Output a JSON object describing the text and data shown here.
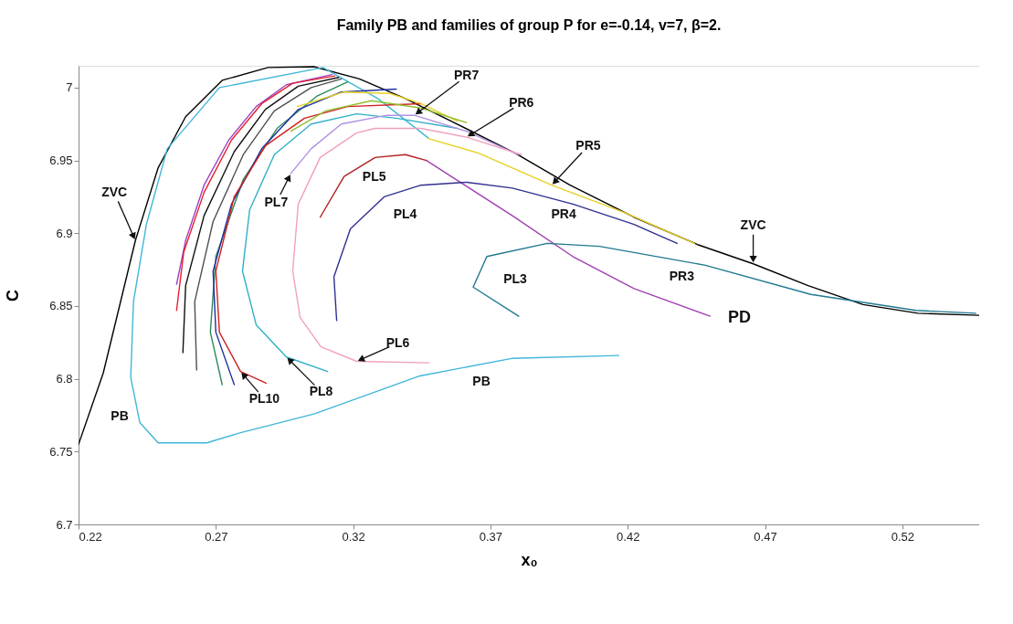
{
  "chart_data": {
    "type": "line",
    "title": "Family PB and families of group P  for e=-0.14, v=7, β=2.",
    "xlabel": "x₀",
    "ylabel": "C",
    "xlim": [
      0.22,
      0.548
    ],
    "xticks": [
      0.22,
      0.27,
      0.32,
      0.37,
      0.42,
      0.47,
      0.52
    ],
    "ylim": [
      6.7,
      7.015
    ],
    "yticks": [
      6.7,
      6.75,
      6.8,
      6.85,
      6.9,
      6.95,
      7
    ],
    "grid": false,
    "legend": false,
    "marker": "none",
    "line_style": "solid",
    "series": [
      {
        "color": "#000000",
        "x": [
          0.22,
          0.229,
          0.2407,
          0.249,
          0.259,
          0.2723,
          0.289,
          0.3057,
          0.3223,
          0.339,
          0.3557,
          0.379,
          0.399,
          0.4223,
          0.4457,
          0.4657,
          0.4857,
          0.5057,
          0.5257,
          0.548
        ],
        "values": [
          6.755,
          6.804,
          6.895,
          6.945,
          6.98,
          7.005,
          7.0138,
          7.0144,
          7.006,
          6.9925,
          6.977,
          6.955,
          6.933,
          6.911,
          6.892,
          6.879,
          6.864,
          6.851,
          6.845,
          6.8436
        ]
      },
      {
        "color": "#41b6d9",
        "x": [
          0.3473,
          0.329,
          0.309,
          0.2713,
          0.2523,
          0.2447,
          0.24,
          0.239,
          0.2423,
          0.249,
          0.2667,
          0.279,
          0.306,
          0.3443,
          0.3777,
          0.4167
        ],
        "values": [
          6.9655,
          6.9925,
          7.0138,
          7.0,
          6.958,
          6.906,
          6.853,
          6.801,
          6.77,
          6.756,
          6.756,
          6.763,
          6.776,
          6.802,
          6.814,
          6.816
        ]
      },
      {
        "color": "#a040c0",
        "x": [
          0.2557,
          0.259,
          0.2657,
          0.2747,
          0.2847,
          0.2957,
          0.3123
        ],
        "values": [
          6.865,
          6.895,
          6.933,
          6.964,
          6.987,
          7.002,
          7.009
        ]
      },
      {
        "color": "#e02030",
        "x": [
          0.2557,
          0.2583,
          0.2657,
          0.2757,
          0.2867,
          0.298,
          0.3133
        ],
        "values": [
          6.847,
          6.887,
          6.928,
          6.964,
          6.989,
          7.003,
          7.008
        ]
      },
      {
        "color": "#111111",
        "x": [
          0.258,
          0.259,
          0.2657,
          0.2767,
          0.288,
          0.3,
          0.3147
        ],
        "values": [
          6.818,
          6.864,
          6.912,
          6.956,
          6.985,
          7.001,
          7.007
        ]
      },
      {
        "color": "#505050",
        "x": [
          0.263,
          0.2623,
          0.269,
          0.28,
          0.2913,
          0.3047,
          0.3157
        ],
        "values": [
          6.806,
          6.853,
          6.908,
          6.954,
          6.984,
          7.0,
          7.006
        ]
      },
      {
        "color": "#2a8a5a",
        "x": [
          0.2723,
          0.268,
          0.27,
          0.28,
          0.2923,
          0.3067,
          0.318
        ],
        "values": [
          6.796,
          6.832,
          6.884,
          6.937,
          6.972,
          6.994,
          7.004
        ]
      },
      {
        "color": "#2030a0",
        "x": [
          0.2767,
          0.27,
          0.269,
          0.2757,
          0.2867,
          0.3,
          0.3157,
          0.3357
        ],
        "values": [
          6.796,
          6.832,
          6.874,
          6.92,
          6.958,
          6.985,
          6.997,
          6.999
        ]
      },
      {
        "color": "#d02020",
        "x": [
          0.2883,
          0.279,
          0.2713,
          0.27,
          0.2767,
          0.288,
          0.3023,
          0.318,
          0.3447
        ],
        "values": [
          6.797,
          6.805,
          6.832,
          6.874,
          6.925,
          6.96,
          6.979,
          6.987,
          6.989
        ]
      },
      {
        "color": "#e8d020",
        "x": [
          0.2997,
          0.3167,
          0.3333,
          0.3447,
          0.358
        ],
        "values": [
          6.987,
          6.997,
          6.996,
          6.989,
          6.977
        ]
      },
      {
        "color": "#90c030",
        "x": [
          0.2973,
          0.31,
          0.3267,
          0.3447,
          0.3613
        ],
        "values": [
          6.97,
          6.984,
          6.991,
          6.986,
          6.976
        ]
      },
      {
        "color": "#30b0c8",
        "x": [
          0.3107,
          0.2957,
          0.2847,
          0.2797,
          0.2823,
          0.2913,
          0.3047,
          0.3213,
          0.3357,
          0.358
        ],
        "values": [
          6.805,
          6.815,
          6.837,
          6.874,
          6.916,
          6.954,
          6.975,
          6.982,
          6.979,
          6.972
        ]
      },
      {
        "color": "#b090e0",
        "x": [
          0.2973,
          0.3047,
          0.3157,
          0.3323,
          0.3423,
          0.3613,
          0.38
        ],
        "values": [
          6.941,
          6.958,
          6.975,
          6.981,
          6.981,
          6.97,
          6.954
        ]
      },
      {
        "color": "#f0a0c0",
        "x": [
          0.3477,
          0.3213,
          0.3083,
          0.3007,
          0.298,
          0.3,
          0.308,
          0.3213,
          0.328,
          0.3447,
          0.3613,
          0.3813
        ],
        "values": [
          6.811,
          6.812,
          6.822,
          6.842,
          6.874,
          6.92,
          6.952,
          6.969,
          6.972,
          6.972,
          6.966,
          6.954
        ]
      },
      {
        "color": "#b02020",
        "x": [
          0.308,
          0.3167,
          0.328,
          0.339,
          0.3467
        ],
        "values": [
          6.911,
          6.939,
          6.952,
          6.954,
          6.95
        ]
      },
      {
        "color": "#a040b0",
        "x": [
          0.3467,
          0.3557,
          0.378,
          0.4,
          0.4223,
          0.45
        ],
        "values": [
          6.95,
          6.939,
          6.912,
          6.884,
          6.862,
          6.843
        ]
      },
      {
        "color": "#303090",
        "x": [
          0.314,
          0.313,
          0.319,
          0.3313,
          0.3447,
          0.3613,
          0.378,
          0.4,
          0.4223,
          0.438
        ],
        "values": [
          6.84,
          6.87,
          6.903,
          6.925,
          6.933,
          6.935,
          6.931,
          6.92,
          6.906,
          6.893
        ]
      },
      {
        "color": "#207890",
        "x": [
          0.3803,
          0.3637,
          0.3687,
          0.3907,
          0.4097,
          0.4483,
          0.4867,
          0.525,
          0.5467
        ],
        "values": [
          6.843,
          6.863,
          6.884,
          6.893,
          6.891,
          6.878,
          6.858,
          6.847,
          6.845
        ]
      },
      {
        "color": "#e8d020",
        "x": [
          0.3473,
          0.3657,
          0.3923,
          0.419,
          0.4443
        ],
        "values": [
          6.965,
          6.955,
          6.933,
          6.914,
          6.893
        ]
      }
    ],
    "annotations": [
      {
        "text": "ZVC",
        "x": 0.2407,
        "y": 6.895
      },
      {
        "text": "ZVC",
        "x": 0.4657,
        "y": 6.879
      },
      {
        "text": "PB",
        "x": 0.2423,
        "y": 6.77
      },
      {
        "text": "PB",
        "x": 0.3777,
        "y": 6.814
      },
      {
        "text": "PL10",
        "x": 0.279,
        "y": 6.805
      },
      {
        "text": "PL8",
        "x": 0.2957,
        "y": 6.815
      },
      {
        "text": "PL6",
        "x": 0.3213,
        "y": 6.812
      },
      {
        "text": "PL7",
        "x": 0.2973,
        "y": 6.941
      },
      {
        "text": "PL5",
        "x": 0.3167,
        "y": 6.939
      },
      {
        "text": "PL4",
        "x": 0.3313,
        "y": 6.925
      },
      {
        "text": "PL3",
        "x": 0.3637,
        "y": 6.863
      },
      {
        "text": "PR7",
        "x": 0.3423,
        "y": 6.981
      },
      {
        "text": "PR6",
        "x": 0.3613,
        "y": 6.966
      },
      {
        "text": "PR5",
        "x": 0.3923,
        "y": 6.933
      },
      {
        "text": "PR4",
        "x": 0.4,
        "y": 6.92
      },
      {
        "text": "PR3",
        "x": 0.4483,
        "y": 6.878
      },
      {
        "text": "PD",
        "x": 0.45,
        "y": 6.843
      }
    ]
  }
}
